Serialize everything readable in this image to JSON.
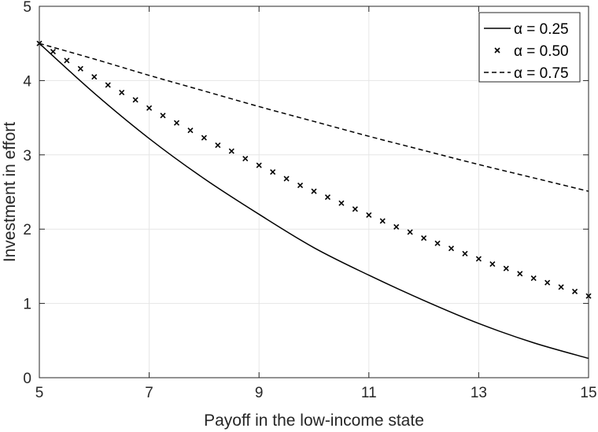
{
  "chart_data": {
    "type": "line",
    "xlabel": "Payoff in the low-income state",
    "ylabel": "Investment in effort",
    "xlim": [
      5,
      15
    ],
    "ylim": [
      0,
      5
    ],
    "xticks": [
      5,
      7,
      9,
      11,
      13,
      15
    ],
    "yticks": [
      0,
      1,
      2,
      3,
      4,
      5
    ],
    "grid": true,
    "legend_position": "top-right",
    "series": [
      {
        "name": "α = 0.25",
        "style": "solid",
        "x": [
          5,
          6,
          7,
          8,
          9,
          10,
          11,
          12,
          13,
          14,
          15
        ],
        "y": [
          4.5,
          3.83,
          3.22,
          2.68,
          2.2,
          1.75,
          1.38,
          1.04,
          0.73,
          0.47,
          0.26
        ]
      },
      {
        "name": "α = 0.50",
        "style": "markers-x",
        "x": [
          5,
          5.25,
          5.5,
          5.75,
          6,
          6.25,
          6.5,
          6.75,
          7,
          7.25,
          7.5,
          7.75,
          8,
          8.25,
          8.5,
          8.75,
          9,
          9.25,
          9.5,
          9.75,
          10,
          10.25,
          10.5,
          10.75,
          11,
          11.25,
          11.5,
          11.75,
          12,
          12.25,
          12.5,
          12.75,
          13,
          13.25,
          13.5,
          13.75,
          14,
          14.25,
          14.5,
          14.75,
          15
        ],
        "y": [
          4.5,
          4.39,
          4.27,
          4.16,
          4.05,
          3.94,
          3.84,
          3.74,
          3.63,
          3.53,
          3.43,
          3.33,
          3.23,
          3.13,
          3.05,
          2.95,
          2.86,
          2.77,
          2.68,
          2.59,
          2.51,
          2.43,
          2.35,
          2.27,
          2.19,
          2.11,
          2.03,
          1.96,
          1.88,
          1.81,
          1.74,
          1.67,
          1.6,
          1.53,
          1.47,
          1.4,
          1.34,
          1.28,
          1.22,
          1.16,
          1.1
        ]
      },
      {
        "name": "α = 0.75",
        "style": "dashed",
        "x": [
          5,
          6,
          7,
          8,
          9,
          10,
          11,
          12,
          13,
          14,
          15
        ],
        "y": [
          4.5,
          4.29,
          4.07,
          3.86,
          3.65,
          3.45,
          3.25,
          3.06,
          2.87,
          2.69,
          2.51
        ]
      }
    ]
  }
}
